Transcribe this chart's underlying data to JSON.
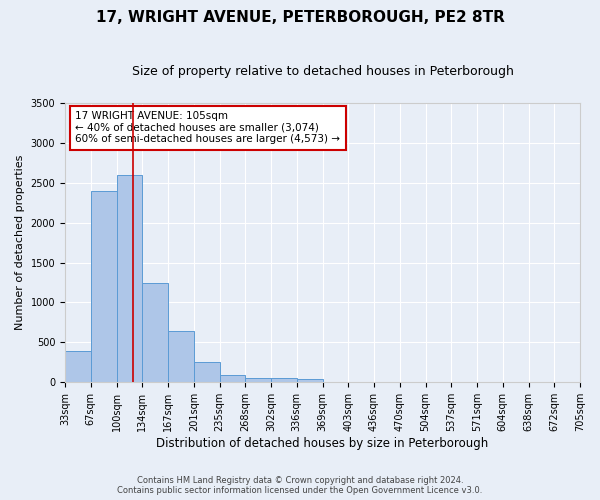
{
  "title": "17, WRIGHT AVENUE, PETERBOROUGH, PE2 8TR",
  "subtitle": "Size of property relative to detached houses in Peterborough",
  "xlabel": "Distribution of detached houses by size in Peterborough",
  "ylabel": "Number of detached properties",
  "footer_line1": "Contains HM Land Registry data © Crown copyright and database right 2024.",
  "footer_line2": "Contains public sector information licensed under the Open Government Licence v3.0.",
  "bins": [
    "33sqm",
    "67sqm",
    "100sqm",
    "134sqm",
    "167sqm",
    "201sqm",
    "235sqm",
    "268sqm",
    "302sqm",
    "336sqm",
    "369sqm",
    "403sqm",
    "436sqm",
    "470sqm",
    "504sqm",
    "537sqm",
    "571sqm",
    "604sqm",
    "638sqm",
    "672sqm",
    "705sqm"
  ],
  "bar_values": [
    390,
    2400,
    2600,
    1240,
    640,
    260,
    95,
    60,
    55,
    45,
    0,
    0,
    0,
    0,
    0,
    0,
    0,
    0,
    0,
    0
  ],
  "bar_color": "#aec6e8",
  "bar_edge_color": "#5b9bd5",
  "vline_x_index": 2.15,
  "vline_color": "#cc0000",
  "annotation_box_text": "17 WRIGHT AVENUE: 105sqm\n← 40% of detached houses are smaller (3,074)\n60% of semi-detached houses are larger (4,573) →",
  "annotation_box_color": "#ffffff",
  "annotation_box_edgecolor": "#cc0000",
  "ylim": [
    0,
    3500
  ],
  "bg_color": "#e8eef7",
  "grid_color": "#ffffff",
  "title_fontsize": 11,
  "subtitle_fontsize": 9,
  "tick_fontsize": 7,
  "ylabel_fontsize": 8,
  "xlabel_fontsize": 8.5,
  "annotation_fontsize": 7.5
}
